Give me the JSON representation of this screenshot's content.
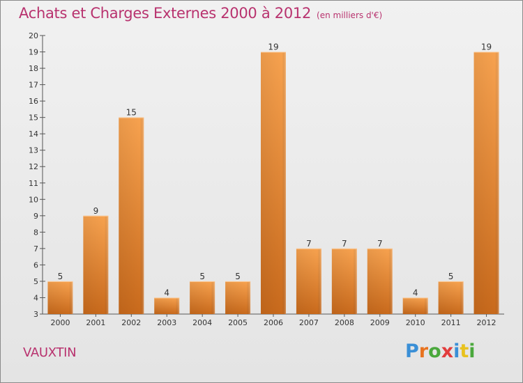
{
  "header": {
    "title": "Achats et Charges Externes 2000 à 2012",
    "unit": "(en milliers d'€)"
  },
  "location": "VAUXTIN",
  "logo": {
    "text": "Proxiti",
    "letter_colors": [
      "#3a8fd6",
      "#e8731f",
      "#4aa83c",
      "#e23c3c",
      "#3a8fd6",
      "#e8c21f",
      "#4aa83c"
    ]
  },
  "chart_data": {
    "type": "bar",
    "title": "Achats et Charges Externes 2000 à 2012",
    "xlabel": "",
    "ylabel": "",
    "categories": [
      "2000",
      "2001",
      "2002",
      "2003",
      "2004",
      "2005",
      "2006",
      "2007",
      "2008",
      "2009",
      "2010",
      "2011",
      "2012"
    ],
    "values": [
      5,
      9,
      15,
      4,
      5,
      5,
      19,
      7,
      7,
      7,
      4,
      5,
      19
    ],
    "ylim": [
      3,
      20
    ],
    "yticks": [
      3,
      4,
      5,
      6,
      7,
      8,
      9,
      10,
      11,
      12,
      13,
      14,
      15,
      16,
      17,
      18,
      19,
      20
    ],
    "grid": false,
    "bar_color_light": "#f7a24f",
    "bar_color_dark": "#c96a1c",
    "axis_color": "#555555",
    "label_color": "#333333"
  }
}
